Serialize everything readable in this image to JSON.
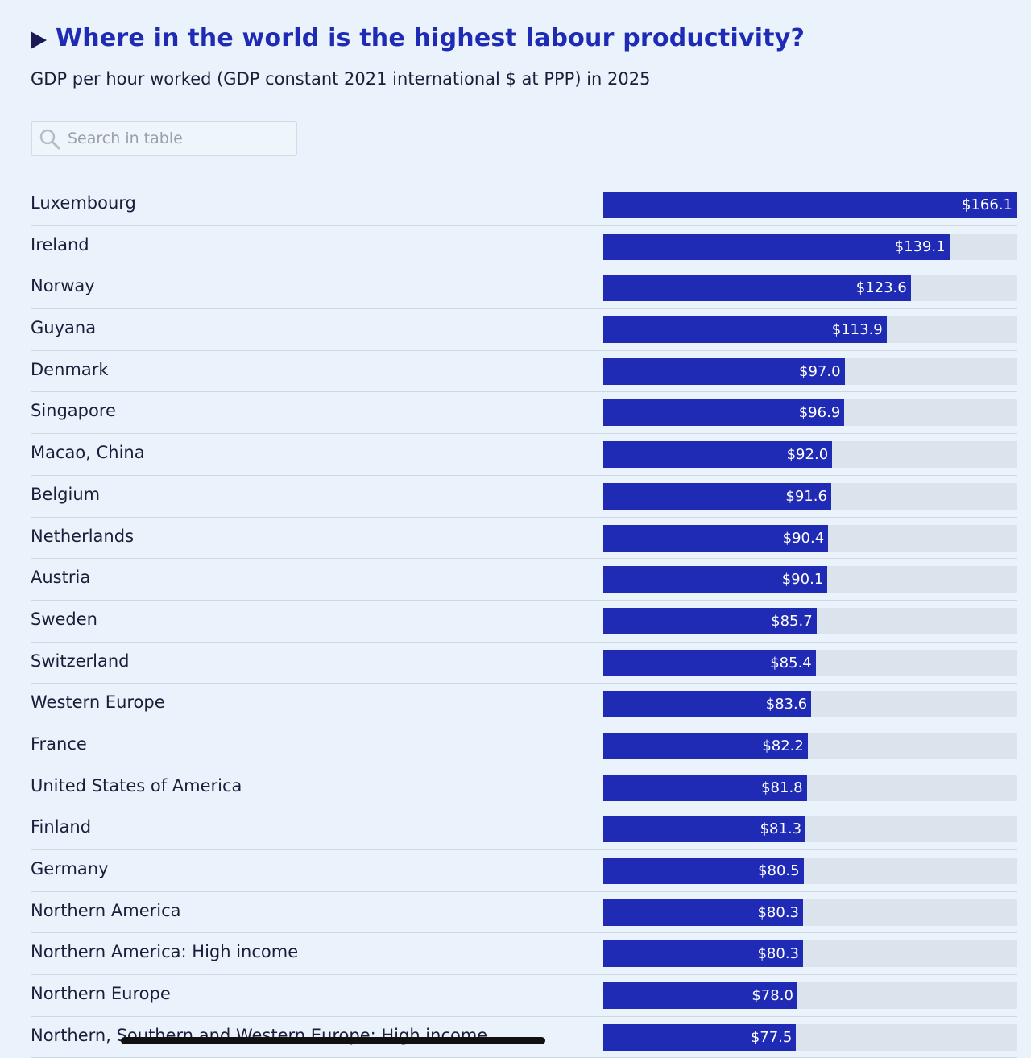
{
  "header": {
    "title": "Where in the world is the highest labour productivity?",
    "subtitle": "GDP per hour worked (GDP constant 2021 international $ at PPP) in 2025"
  },
  "search": {
    "placeholder": "Search in table",
    "value": ""
  },
  "colors": {
    "bar": "#1f2bb5",
    "track": "#dbe3ec",
    "background": "#eaf3fb",
    "title": "#1f2bb5"
  },
  "chart_data": {
    "type": "bar",
    "orientation": "horizontal",
    "title": "Where in the world is the highest labour productivity?",
    "subtitle": "GDP per hour worked (GDP constant 2021 international $ at PPP) in 2025",
    "value_prefix": "$",
    "xlim": [
      0,
      166.1
    ],
    "categories": [
      "Luxembourg",
      "Ireland",
      "Norway",
      "Guyana",
      "Denmark",
      "Singapore",
      "Macao, China",
      "Belgium",
      "Netherlands",
      "Austria",
      "Sweden",
      "Switzerland",
      "Western Europe",
      "France",
      "United States of America",
      "Finland",
      "Germany",
      "Northern America",
      "Northern America: High income",
      "Northern Europe",
      "Northern, Southern and Western Europe: High income"
    ],
    "values": [
      166.1,
      139.1,
      123.6,
      113.9,
      97.0,
      96.9,
      92.0,
      91.6,
      90.4,
      90.1,
      85.7,
      85.4,
      83.6,
      82.2,
      81.8,
      81.3,
      80.5,
      80.3,
      80.3,
      78.0,
      77.5
    ],
    "labels": [
      "$166.1",
      "$139.1",
      "$123.6",
      "$113.9",
      "$97.0",
      "$96.9",
      "$92.0",
      "$91.6",
      "$90.4",
      "$90.1",
      "$85.7",
      "$85.4",
      "$83.6",
      "$82.2",
      "$81.8",
      "$81.3",
      "$80.5",
      "$80.3",
      "$80.3",
      "$78.0",
      "$77.5"
    ]
  }
}
